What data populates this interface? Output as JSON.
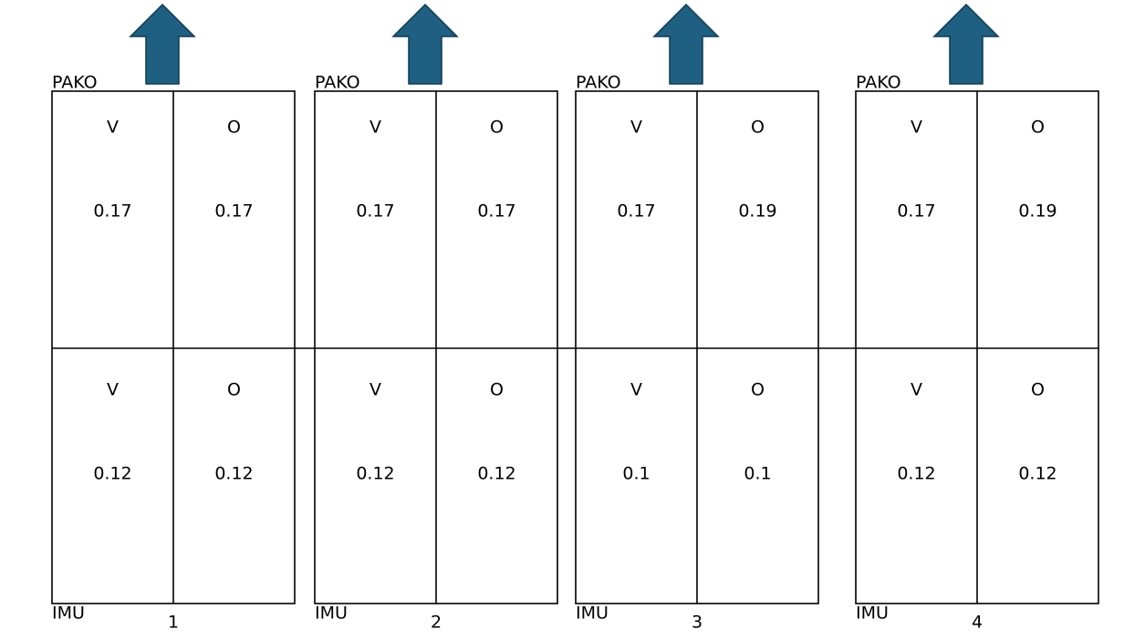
{
  "panels": [
    {
      "top_label": "PAKO",
      "bottom_label": "IMU",
      "number": 1,
      "rows": [
        {
          "cells": [
            {
              "label": "V",
              "value": 0.17
            },
            {
              "label": "O",
              "value": 0.17
            }
          ]
        },
        {
          "cells": [
            {
              "label": "V",
              "value": 0.12
            },
            {
              "label": "O",
              "value": 0.12
            }
          ]
        }
      ]
    },
    {
      "top_label": "PAKO",
      "bottom_label": "IMU",
      "number": 2,
      "rows": [
        {
          "cells": [
            {
              "label": "V",
              "value": 0.17
            },
            {
              "label": "O",
              "value": 0.17
            }
          ]
        },
        {
          "cells": [
            {
              "label": "V",
              "value": 0.12
            },
            {
              "label": "O",
              "value": 0.12
            }
          ]
        }
      ]
    },
    {
      "top_label": "PAKO",
      "bottom_label": "IMU",
      "number": 3,
      "rows": [
        {
          "cells": [
            {
              "label": "V",
              "value": 0.17
            },
            {
              "label": "O",
              "value": 0.19
            }
          ]
        },
        {
          "cells": [
            {
              "label": "V",
              "value": 0.1
            },
            {
              "label": "O",
              "value": 0.1
            }
          ]
        }
      ]
    },
    {
      "top_label": "PAKO",
      "bottom_label": "IMU",
      "number": 4,
      "rows": [
        {
          "cells": [
            {
              "label": "V",
              "value": 0.17
            },
            {
              "label": "O",
              "value": 0.19
            }
          ]
        },
        {
          "cells": [
            {
              "label": "V",
              "value": 0.12
            },
            {
              "label": "O",
              "value": 0.12
            }
          ]
        }
      ]
    }
  ]
}
